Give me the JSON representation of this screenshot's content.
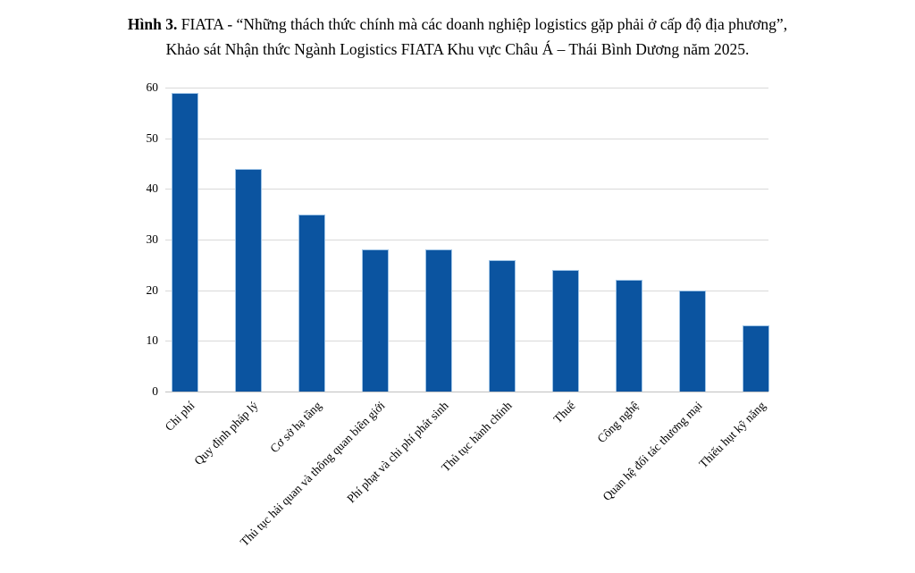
{
  "figure": {
    "title_prefix": "Hình 3.",
    "title_line1": " FIATA - “Những thách thức chính mà các doanh nghiệp logistics gặp phải ở cấp độ địa phương”,",
    "title_line2": "Khảo sát Nhận thức Ngành Logistics FIATA Khu vực Châu Á – Thái Bình Dương năm 2025."
  },
  "chart_data": {
    "type": "bar",
    "title": "",
    "xlabel": "",
    "ylabel": "",
    "categories": [
      "Chi phí",
      "Quy định pháp lý",
      "Cơ sở hạ tầng",
      "Thủ tục hải quan và thông quan biên giới",
      "Phí phạt và chi phí phát sinh",
      "Thủ tục hành chính",
      "Thuế",
      "Công nghệ",
      "Quan hệ đối tác thương mại",
      "Thiếu hụt kỹ năng"
    ],
    "values": [
      59,
      44,
      35,
      28,
      28,
      26,
      24,
      22,
      20,
      13
    ],
    "ylim": [
      0,
      60
    ],
    "yticks": [
      0,
      10,
      20,
      30,
      40,
      50,
      60
    ],
    "grid": true,
    "legend": false,
    "x_tick_rotation_deg": 45,
    "bar_color": "#0b54a0",
    "bar_border_color": "#9dc3e6",
    "gridline_color": "#d9d9d9",
    "axis_line_color": "#c0c0c0",
    "text_color": "#000000"
  }
}
